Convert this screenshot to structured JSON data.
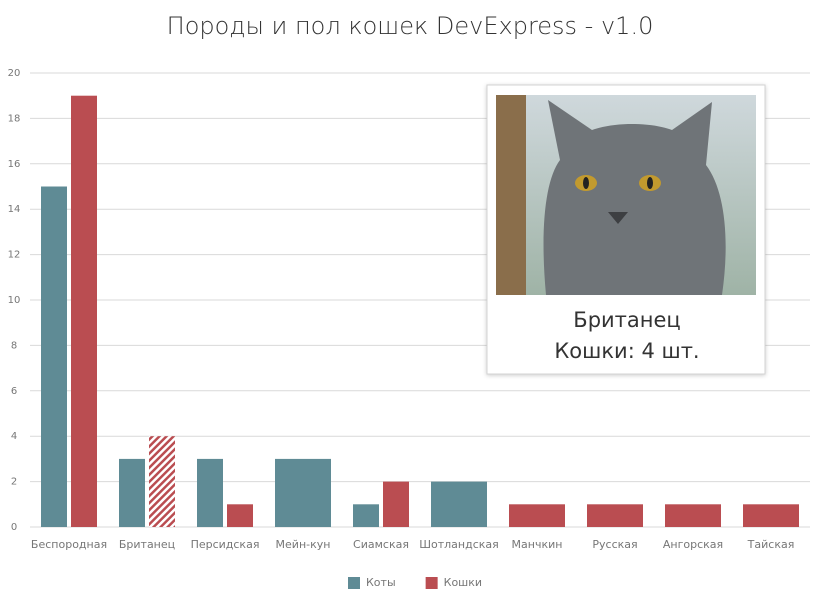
{
  "chart_data": {
    "type": "bar",
    "title": "Породы и пол кошек DevExpress - v1.0",
    "categories": [
      "Беспородная",
      "Британец",
      "Персидская",
      "Мейн-кун",
      "Сиамская",
      "Шотландская",
      "Манчкин",
      "Русская",
      "Ангорская",
      "Тайская"
    ],
    "series": [
      {
        "name": "Коты",
        "color": "#5f8b95",
        "values": [
          15,
          3,
          3,
          3,
          1,
          2,
          null,
          null,
          null,
          null
        ]
      },
      {
        "name": "Кошки",
        "color": "#ba4d51",
        "values": [
          19,
          4,
          1,
          null,
          2,
          null,
          1,
          1,
          1,
          1
        ]
      }
    ],
    "ylim": [
      0,
      20
    ],
    "yticks": [
      0,
      2,
      4,
      6,
      8,
      10,
      12,
      14,
      16,
      18,
      20
    ],
    "grid": true,
    "legend": "bottom",
    "selected": {
      "series": 1,
      "index": 1
    },
    "tooltip": {
      "title": "Британец",
      "text": "Кошки: 4 шт."
    }
  }
}
